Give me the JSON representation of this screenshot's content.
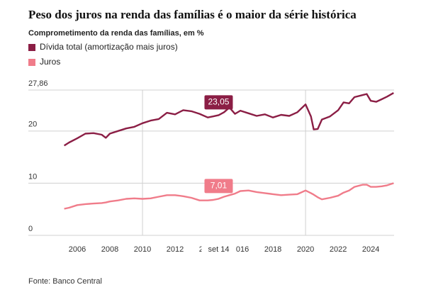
{
  "chart_data": {
    "type": "line",
    "title": "Peso dos juros na renda das famílias é o maior da série histórica",
    "subtitle": "Comprometimento da renda das famílias, em %",
    "source": "Fonte: Banco Central",
    "x": [
      2005.2,
      2005.5,
      2006.0,
      2006.5,
      2007.0,
      2007.5,
      2007.75,
      2008.0,
      2008.5,
      2009.0,
      2009.5,
      2010.0,
      2010.5,
      2011.0,
      2011.5,
      2012.0,
      2012.5,
      2013.0,
      2013.5,
      2014.0,
      2014.33,
      2014.67,
      2015.0,
      2015.33,
      2015.67,
      2016.0,
      2016.5,
      2017.0,
      2017.5,
      2018.0,
      2018.5,
      2019.0,
      2019.5,
      2020.0,
      2020.33,
      2020.5,
      2020.75,
      2021.0,
      2021.5,
      2022.0,
      2022.33,
      2022.67,
      2023.0,
      2023.5,
      2023.75,
      2024.0,
      2024.33,
      2024.67,
      2025.0,
      2025.4
    ],
    "series": [
      {
        "name": "Dívida total (amortização mais juros)",
        "color": "#8b1e45",
        "values": [
          17.2,
          17.8,
          18.6,
          19.5,
          19.6,
          19.3,
          18.7,
          19.5,
          20.0,
          20.5,
          20.8,
          21.5,
          22.0,
          22.3,
          23.5,
          23.2,
          24.0,
          23.8,
          23.3,
          22.6,
          22.8,
          23.05,
          23.6,
          24.5,
          23.3,
          23.9,
          23.4,
          22.9,
          23.2,
          22.6,
          23.1,
          22.9,
          23.6,
          25.1,
          22.8,
          20.3,
          20.4,
          22.2,
          22.8,
          24.0,
          25.5,
          25.3,
          26.5,
          26.9,
          27.1,
          25.8,
          25.6,
          26.1,
          26.6,
          27.3
        ],
        "value_labels": [
          null,
          null,
          null,
          null,
          null,
          null,
          null,
          null,
          null,
          null,
          null,
          null,
          null,
          null,
          null,
          null,
          null,
          null,
          null,
          null,
          null,
          "23,05",
          null,
          null,
          null,
          null,
          null,
          null,
          null,
          null,
          null,
          null,
          null,
          null,
          null,
          null,
          null,
          null,
          null,
          null,
          null,
          null,
          null,
          null,
          null,
          null,
          null,
          null,
          null,
          null
        ]
      },
      {
        "name": "Juros",
        "color": "#f07c8a",
        "values": [
          5.1,
          5.3,
          5.8,
          6.0,
          6.1,
          6.2,
          6.3,
          6.5,
          6.7,
          7.0,
          7.1,
          7.0,
          7.1,
          7.4,
          7.7,
          7.7,
          7.5,
          7.2,
          6.7,
          6.7,
          6.8,
          7.01,
          7.4,
          7.7,
          8.0,
          8.5,
          8.6,
          8.3,
          8.1,
          7.9,
          7.7,
          7.8,
          7.9,
          8.6,
          8.1,
          7.8,
          7.3,
          6.9,
          7.2,
          7.6,
          8.2,
          8.6,
          9.3,
          9.7,
          9.7,
          9.3,
          9.3,
          9.4,
          9.6,
          10.0
        ],
        "value_labels": [
          null,
          null,
          null,
          null,
          null,
          null,
          null,
          null,
          null,
          null,
          null,
          null,
          null,
          null,
          null,
          null,
          null,
          null,
          null,
          null,
          null,
          "7,01",
          null,
          null,
          null,
          null,
          null,
          null,
          null,
          null,
          null,
          null,
          null,
          null,
          null,
          null,
          null,
          null,
          null,
          null,
          null,
          null,
          null,
          null,
          null,
          null,
          null,
          null,
          null,
          null
        ]
      }
    ],
    "hover": {
      "x": 2014.67,
      "label": "set 14"
    },
    "xlim": [
      2003.0,
      2025.43
    ],
    "xticks": [
      2006,
      2008,
      2010,
      2012,
      2014,
      2016,
      2018,
      2020,
      2022,
      2024
    ],
    "vlines": [
      2010,
      2020
    ],
    "ylim": [
      0,
      27.86
    ],
    "yticks": [
      0,
      10,
      20,
      {
        "value": 27.86,
        "label": "27,86"
      }
    ],
    "grid": true
  }
}
